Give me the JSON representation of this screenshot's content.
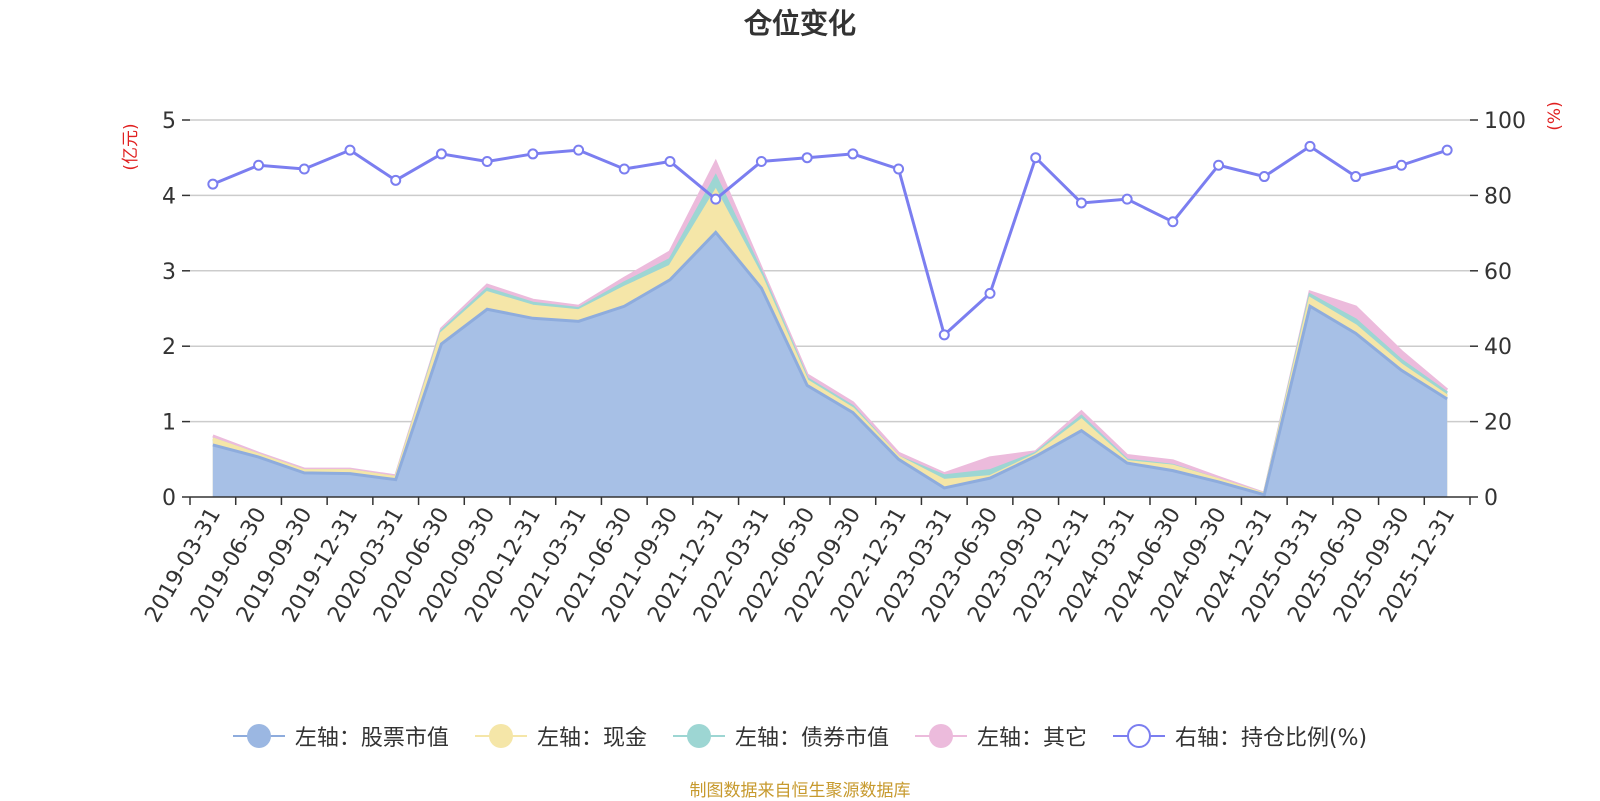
{
  "chart_data": {
    "type": "area",
    "title": "仓位变化",
    "source_note": "制图数据来自恒生聚源数据库",
    "left_axis": {
      "label": "(亿元)",
      "min": 0,
      "max": 5,
      "ticks": [
        "0",
        "1",
        "2",
        "3",
        "4",
        "5"
      ]
    },
    "right_axis": {
      "label": "(%)",
      "min": 0,
      "max": 100,
      "ticks": [
        "0",
        "20",
        "40",
        "60",
        "80",
        "100"
      ]
    },
    "categories": [
      "2019-03-31",
      "2019-06-30",
      "2019-09-30",
      "2019-12-31",
      "2020-03-31",
      "2020-06-30",
      "2020-09-30",
      "2020-12-31",
      "2021-03-31",
      "2021-06-30",
      "2021-09-30",
      "2021-12-31",
      "2022-03-31",
      "2022-06-30",
      "2022-09-30",
      "2022-12-31",
      "2023-03-31",
      "2023-06-30",
      "2023-09-30",
      "2023-12-31",
      "2024-03-31",
      "2024-06-30",
      "2024-09-30",
      "2024-12-31",
      "2025-03-31",
      "2025-06-30",
      "2025-09-30",
      "2025-12-31"
    ],
    "series": [
      {
        "name": "左轴：股票市值",
        "axis": "left",
        "kind": "stacked-area",
        "color": "#a7c0e6",
        "values": [
          0.69,
          0.53,
          0.32,
          0.31,
          0.23,
          2.03,
          2.49,
          2.37,
          2.33,
          2.53,
          2.88,
          3.51,
          2.77,
          1.48,
          1.12,
          0.5,
          0.12,
          0.25,
          0.54,
          0.88,
          0.45,
          0.35,
          0.2,
          0.03,
          2.53,
          2.17,
          1.68,
          1.3
        ]
      },
      {
        "name": "左轴：现金",
        "axis": "left",
        "kind": "stacked-area",
        "color": "#f5e6a8",
        "values": [
          0.08,
          0.03,
          0.03,
          0.04,
          0.03,
          0.14,
          0.22,
          0.16,
          0.14,
          0.25,
          0.18,
          0.55,
          0.15,
          0.06,
          0.05,
          0.03,
          0.1,
          0.02,
          0.02,
          0.14,
          0.02,
          0.06,
          0.03,
          0.01,
          0.1,
          0.1,
          0.07,
          0.04
        ]
      },
      {
        "name": "左轴：债券市值",
        "axis": "left",
        "kind": "stacked-area",
        "color": "#9dd6d3",
        "values": [
          0.0,
          0.0,
          0.0,
          0.0,
          0.0,
          0.03,
          0.05,
          0.04,
          0.03,
          0.06,
          0.09,
          0.19,
          0.06,
          0.03,
          0.03,
          0.0,
          0.06,
          0.08,
          0.02,
          0.05,
          0.02,
          0.01,
          0.0,
          0.0,
          0.05,
          0.08,
          0.06,
          0.04
        ]
      },
      {
        "name": "左轴：其它",
        "axis": "left",
        "kind": "stacked-area",
        "color": "#ecbbdc",
        "values": [
          0.04,
          0.02,
          0.02,
          0.02,
          0.02,
          0.03,
          0.05,
          0.04,
          0.03,
          0.06,
          0.1,
          0.19,
          0.05,
          0.05,
          0.05,
          0.05,
          0.03,
          0.17,
          0.02,
          0.06,
          0.06,
          0.06,
          0.03,
          0.01,
          0.04,
          0.17,
          0.12,
          0.04
        ]
      },
      {
        "name": "右轴：持仓比例(%)",
        "axis": "right",
        "kind": "line",
        "color": "#7b7ef0",
        "values": [
          83,
          88,
          87,
          92,
          84,
          91,
          89,
          91,
          92,
          87,
          89,
          79,
          89,
          90,
          91,
          87,
          43,
          54,
          90,
          78,
          79,
          73,
          88,
          85,
          93,
          85,
          88,
          92
        ]
      }
    ],
    "legend_position": "bottom-center",
    "grid": true
  }
}
